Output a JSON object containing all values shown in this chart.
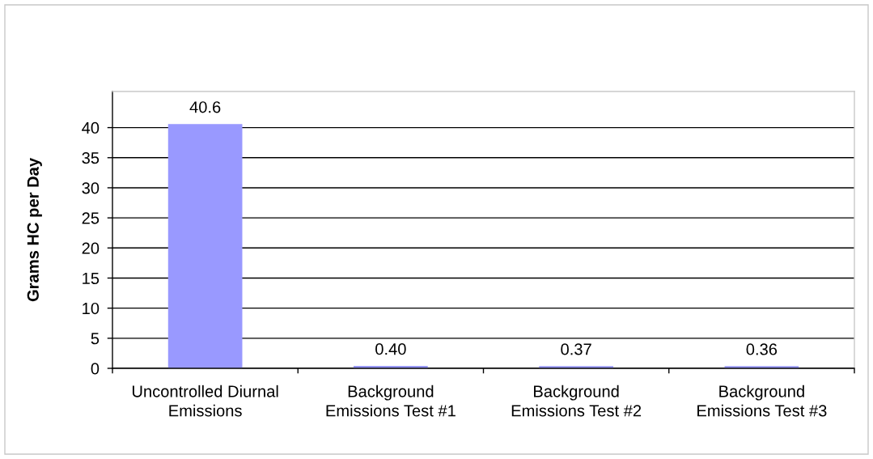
{
  "chart_data": {
    "type": "bar",
    "ylabel": "Grams HC per Day",
    "categories": [
      "Uncontrolled Diurnal\nEmissions",
      "Background\nEmissions Test #1",
      "Background\nEmissions Test #2",
      "Background\nEmissions Test #3"
    ],
    "values": [
      40.6,
      0.4,
      0.37,
      0.36
    ],
    "value_labels": [
      "40.6",
      "0.40",
      "0.37",
      "0.36"
    ],
    "color": "#9999ff",
    "ylim": [
      0,
      46
    ],
    "yticks": [
      0,
      5,
      10,
      15,
      20,
      25,
      30,
      35,
      40
    ],
    "grid": "y"
  }
}
